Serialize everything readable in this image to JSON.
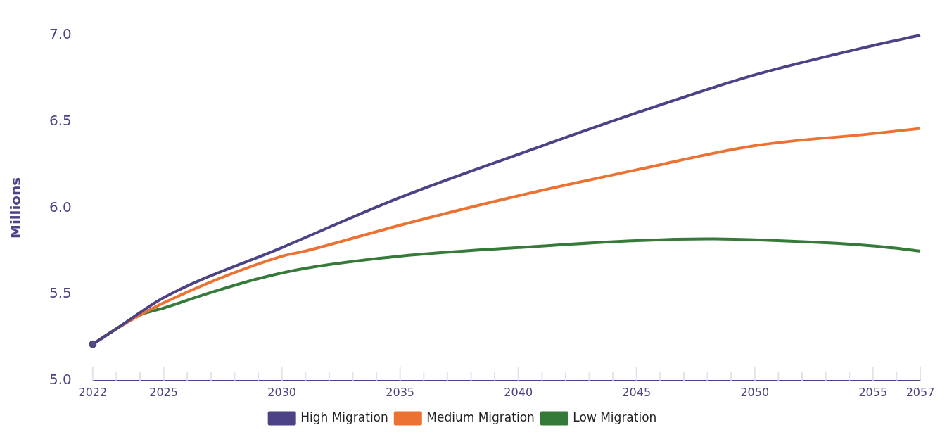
{
  "chart_data": {
    "type": "line",
    "ylabel": "Millions",
    "xlim": [
      2022,
      2057
    ],
    "xticks": [
      2022,
      {
        "value": 2023,
        "label": null
      },
      {
        "value": 2024,
        "label": null
      },
      2025,
      {
        "value": 2026,
        "label": null
      },
      {
        "value": 2027,
        "label": null
      },
      {
        "value": 2028,
        "label": null
      },
      {
        "value": 2029,
        "label": null
      },
      2030,
      {
        "value": 2031,
        "label": null
      },
      {
        "value": 2032,
        "label": null
      },
      {
        "value": 2033,
        "label": null
      },
      {
        "value": 2034,
        "label": null
      },
      2035,
      {
        "value": 2036,
        "label": null
      },
      {
        "value": 2037,
        "label": null
      },
      {
        "value": 2038,
        "label": null
      },
      {
        "value": 2039,
        "label": null
      },
      2040,
      {
        "value": 2041,
        "label": null
      },
      {
        "value": 2042,
        "label": null
      },
      {
        "value": 2043,
        "label": null
      },
      {
        "value": 2044,
        "label": null
      },
      2045,
      {
        "value": 2046,
        "label": null
      },
      {
        "value": 2047,
        "label": null
      },
      {
        "value": 2048,
        "label": null
      },
      {
        "value": 2049,
        "label": null
      },
      2050,
      {
        "value": 2051,
        "label": null
      },
      {
        "value": 2052,
        "label": null
      },
      {
        "value": 2053,
        "label": null
      },
      {
        "value": 2054,
        "label": null
      },
      2055,
      {
        "value": 2056,
        "label": null
      },
      2057
    ],
    "ylim": [
      5.0,
      7.0
    ],
    "yticks": [
      {
        "value": 5.0,
        "label": "5.0"
      },
      5.5,
      {
        "value": 6.0,
        "label": "6.0"
      },
      6.5,
      {
        "value": 7.0,
        "label": "7.0"
      }
    ],
    "grid": false,
    "legend": "bottom",
    "marker": "none",
    "line_style": "solid",
    "series": [
      {
        "name": "High Migration",
        "color": "#4b4385",
        "x": [
          2022,
          2023,
          2025,
          2030,
          2035,
          2040,
          2045,
          2050,
          2055,
          2057
        ],
        "values": [
          5.21,
          5.3,
          5.48,
          5.77,
          6.06,
          6.31,
          6.55,
          6.77,
          6.94,
          7.0
        ]
      },
      {
        "name": "Medium Migration",
        "color": "#eb7233",
        "x": [
          2022,
          2023,
          2025,
          2030,
          2031,
          2035,
          2040,
          2045,
          2050,
          2055,
          2057
        ],
        "values": [
          5.21,
          5.3,
          5.45,
          5.72,
          5.75,
          5.9,
          6.07,
          6.22,
          6.36,
          6.43,
          6.46
        ]
      },
      {
        "name": "Low Migration",
        "color": "#357a38",
        "x": [
          2022,
          2023,
          2024,
          2025,
          2027,
          2029,
          2031,
          2035,
          2040,
          2045,
          2048,
          2050,
          2055,
          2057
        ],
        "values": [
          5.21,
          5.3,
          5.38,
          5.42,
          5.51,
          5.59,
          5.65,
          5.72,
          5.77,
          5.81,
          5.82,
          5.815,
          5.78,
          5.75
        ]
      },
      {
        "type": "scatter",
        "color": "#4b4385",
        "marker": "circle",
        "x": [
          2022
        ],
        "values": [
          5.21
        ]
      }
    ]
  }
}
